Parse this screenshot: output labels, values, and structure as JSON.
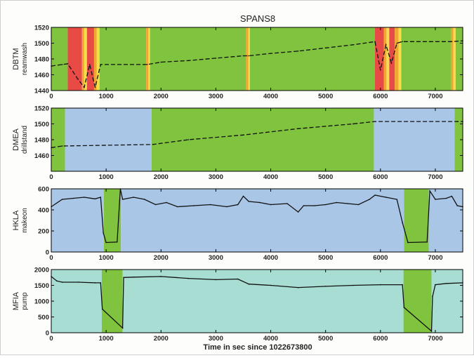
{
  "chart_data": {
    "type": "line",
    "title": "SPANS8",
    "xlabel": "Time in sec since 1022673800",
    "xlim": [
      0,
      7500
    ],
    "x_ticks": [
      0,
      1000,
      2000,
      3000,
      4000,
      5000,
      6000,
      7000
    ],
    "panels": [
      {
        "name": "DBTM",
        "ylabel_line1": "DBTM",
        "ylabel_line2": "reamwash",
        "ylim": [
          1440,
          1520
        ],
        "y_ticks": [
          1440,
          1460,
          1480,
          1500,
          1520
        ],
        "state_bands": [
          {
            "start": 0,
            "end": 300,
            "state": "green"
          },
          {
            "start": 300,
            "end": 560,
            "state": "red"
          },
          {
            "start": 560,
            "end": 600,
            "state": "orange"
          },
          {
            "start": 600,
            "end": 650,
            "state": "yellow"
          },
          {
            "start": 650,
            "end": 780,
            "state": "red"
          },
          {
            "start": 780,
            "end": 830,
            "state": "orange"
          },
          {
            "start": 830,
            "end": 880,
            "state": "yellow"
          },
          {
            "start": 880,
            "end": 1730,
            "state": "green"
          },
          {
            "start": 1730,
            "end": 1770,
            "state": "orange"
          },
          {
            "start": 1770,
            "end": 1800,
            "state": "yellow"
          },
          {
            "start": 1800,
            "end": 3550,
            "state": "green"
          },
          {
            "start": 3550,
            "end": 3590,
            "state": "orange"
          },
          {
            "start": 3590,
            "end": 3620,
            "state": "yellow"
          },
          {
            "start": 3620,
            "end": 5900,
            "state": "green"
          },
          {
            "start": 5900,
            "end": 6060,
            "state": "red"
          },
          {
            "start": 6060,
            "end": 6110,
            "state": "orange"
          },
          {
            "start": 6110,
            "end": 6160,
            "state": "yellow"
          },
          {
            "start": 6160,
            "end": 6260,
            "state": "red"
          },
          {
            "start": 6260,
            "end": 6330,
            "state": "orange"
          },
          {
            "start": 6330,
            "end": 6380,
            "state": "yellow"
          },
          {
            "start": 6380,
            "end": 7290,
            "state": "green"
          },
          {
            "start": 7290,
            "end": 7330,
            "state": "orange"
          },
          {
            "start": 7330,
            "end": 7370,
            "state": "yellow"
          },
          {
            "start": 7370,
            "end": 7500,
            "state": "green"
          }
        ],
        "x": [
          0,
          200,
          300,
          480,
          600,
          700,
          800,
          900,
          1700,
          1750,
          2000,
          2500,
          3000,
          3500,
          3600,
          4000,
          4500,
          5000,
          5500,
          5900,
          6000,
          6100,
          6200,
          6300,
          6400,
          7300,
          7500
        ],
        "values": [
          1471,
          1473,
          1474,
          1455,
          1444,
          1473,
          1444,
          1473,
          1473,
          1473,
          1476,
          1478,
          1481,
          1484,
          1484,
          1487,
          1490,
          1494,
          1498,
          1502,
          1466,
          1498,
          1475,
          1500,
          1502,
          1502,
          1503
        ]
      },
      {
        "name": "DMEA",
        "ylabel_line1": "DMEA",
        "ylabel_line2": "drillstand",
        "ylim": [
          1440,
          1520
        ],
        "y_ticks": [
          1460,
          1480,
          1500,
          1520
        ],
        "state_bands": [
          {
            "start": 0,
            "end": 250,
            "state": "green"
          },
          {
            "start": 250,
            "end": 1830,
            "state": "blue"
          },
          {
            "start": 1830,
            "end": 5880,
            "state": "green"
          },
          {
            "start": 5880,
            "end": 7350,
            "state": "blue"
          },
          {
            "start": 7350,
            "end": 7500,
            "state": "green"
          }
        ],
        "x": [
          0,
          200,
          1850,
          2500,
          3500,
          4500,
          5500,
          5900,
          7400,
          7500
        ],
        "values": [
          1470,
          1472,
          1474,
          1480,
          1486,
          1494,
          1500,
          1503,
          1503,
          1503
        ]
      },
      {
        "name": "HKLA",
        "ylabel_line1": "HKLA",
        "ylabel_line2": "makeon",
        "ylim": [
          0,
          600
        ],
        "y_ticks": [
          0,
          200,
          400,
          600
        ],
        "state_bands": [
          {
            "start": 0,
            "end": 960,
            "state": "blue"
          },
          {
            "start": 960,
            "end": 1270,
            "state": "green"
          },
          {
            "start": 1270,
            "end": 6430,
            "state": "blue"
          },
          {
            "start": 6430,
            "end": 6880,
            "state": "green"
          },
          {
            "start": 6880,
            "end": 7500,
            "state": "blue"
          }
        ],
        "x": [
          0,
          200,
          400,
          600,
          800,
          900,
          950,
          1000,
          1200,
          1260,
          1300,
          1500,
          1700,
          1900,
          2100,
          2300,
          2600,
          2900,
          3200,
          3400,
          3500,
          3600,
          3800,
          4000,
          4300,
          4500,
          4600,
          4800,
          5000,
          5200,
          5400,
          5600,
          5800,
          5900,
          6100,
          6300,
          6400,
          6500,
          6850,
          6900,
          7000,
          7200,
          7300,
          7400,
          7500
        ],
        "values": [
          430,
          500,
          510,
          520,
          505,
          520,
          180,
          90,
          95,
          600,
          500,
          520,
          500,
          450,
          470,
          430,
          440,
          450,
          430,
          450,
          530,
          480,
          470,
          450,
          460,
          380,
          440,
          440,
          450,
          470,
          460,
          450,
          500,
          540,
          520,
          500,
          280,
          90,
          95,
          580,
          500,
          510,
          530,
          440,
          430
        ]
      },
      {
        "name": "MFIA",
        "ylabel_line1": "MFIA",
        "ylabel_line2": "pump",
        "ylim": [
          0,
          2000
        ],
        "y_ticks": [
          0,
          500,
          1000,
          1500,
          2000
        ],
        "state_bands": [
          {
            "start": 0,
            "end": 920,
            "state": "teal"
          },
          {
            "start": 920,
            "end": 1300,
            "state": "green"
          },
          {
            "start": 1300,
            "end": 6420,
            "state": "teal"
          },
          {
            "start": 6420,
            "end": 6930,
            "state": "green"
          },
          {
            "start": 6930,
            "end": 7500,
            "state": "teal"
          }
        ],
        "x": [
          0,
          100,
          200,
          500,
          800,
          900,
          930,
          1300,
          1320,
          1500,
          2000,
          2500,
          3000,
          3400,
          3600,
          4000,
          4500,
          5000,
          5500,
          6000,
          6400,
          6430,
          6930,
          6950,
          7000,
          7200,
          7500
        ],
        "values": [
          1780,
          1640,
          1600,
          1600,
          1580,
          1580,
          750,
          150,
          1750,
          1760,
          1780,
          1720,
          1680,
          1700,
          1540,
          1500,
          1430,
          1470,
          1500,
          1520,
          1520,
          800,
          50,
          1150,
          1520,
          1560,
          1580
        ]
      }
    ],
    "state_colors": {
      "green": "#7fc33f",
      "red": "#e84b46",
      "orange": "#f2a632",
      "yellow": "#f3dd4a",
      "blue": "#a9c6e6",
      "teal": "#a7ddd3"
    },
    "line_color": "#111111"
  }
}
